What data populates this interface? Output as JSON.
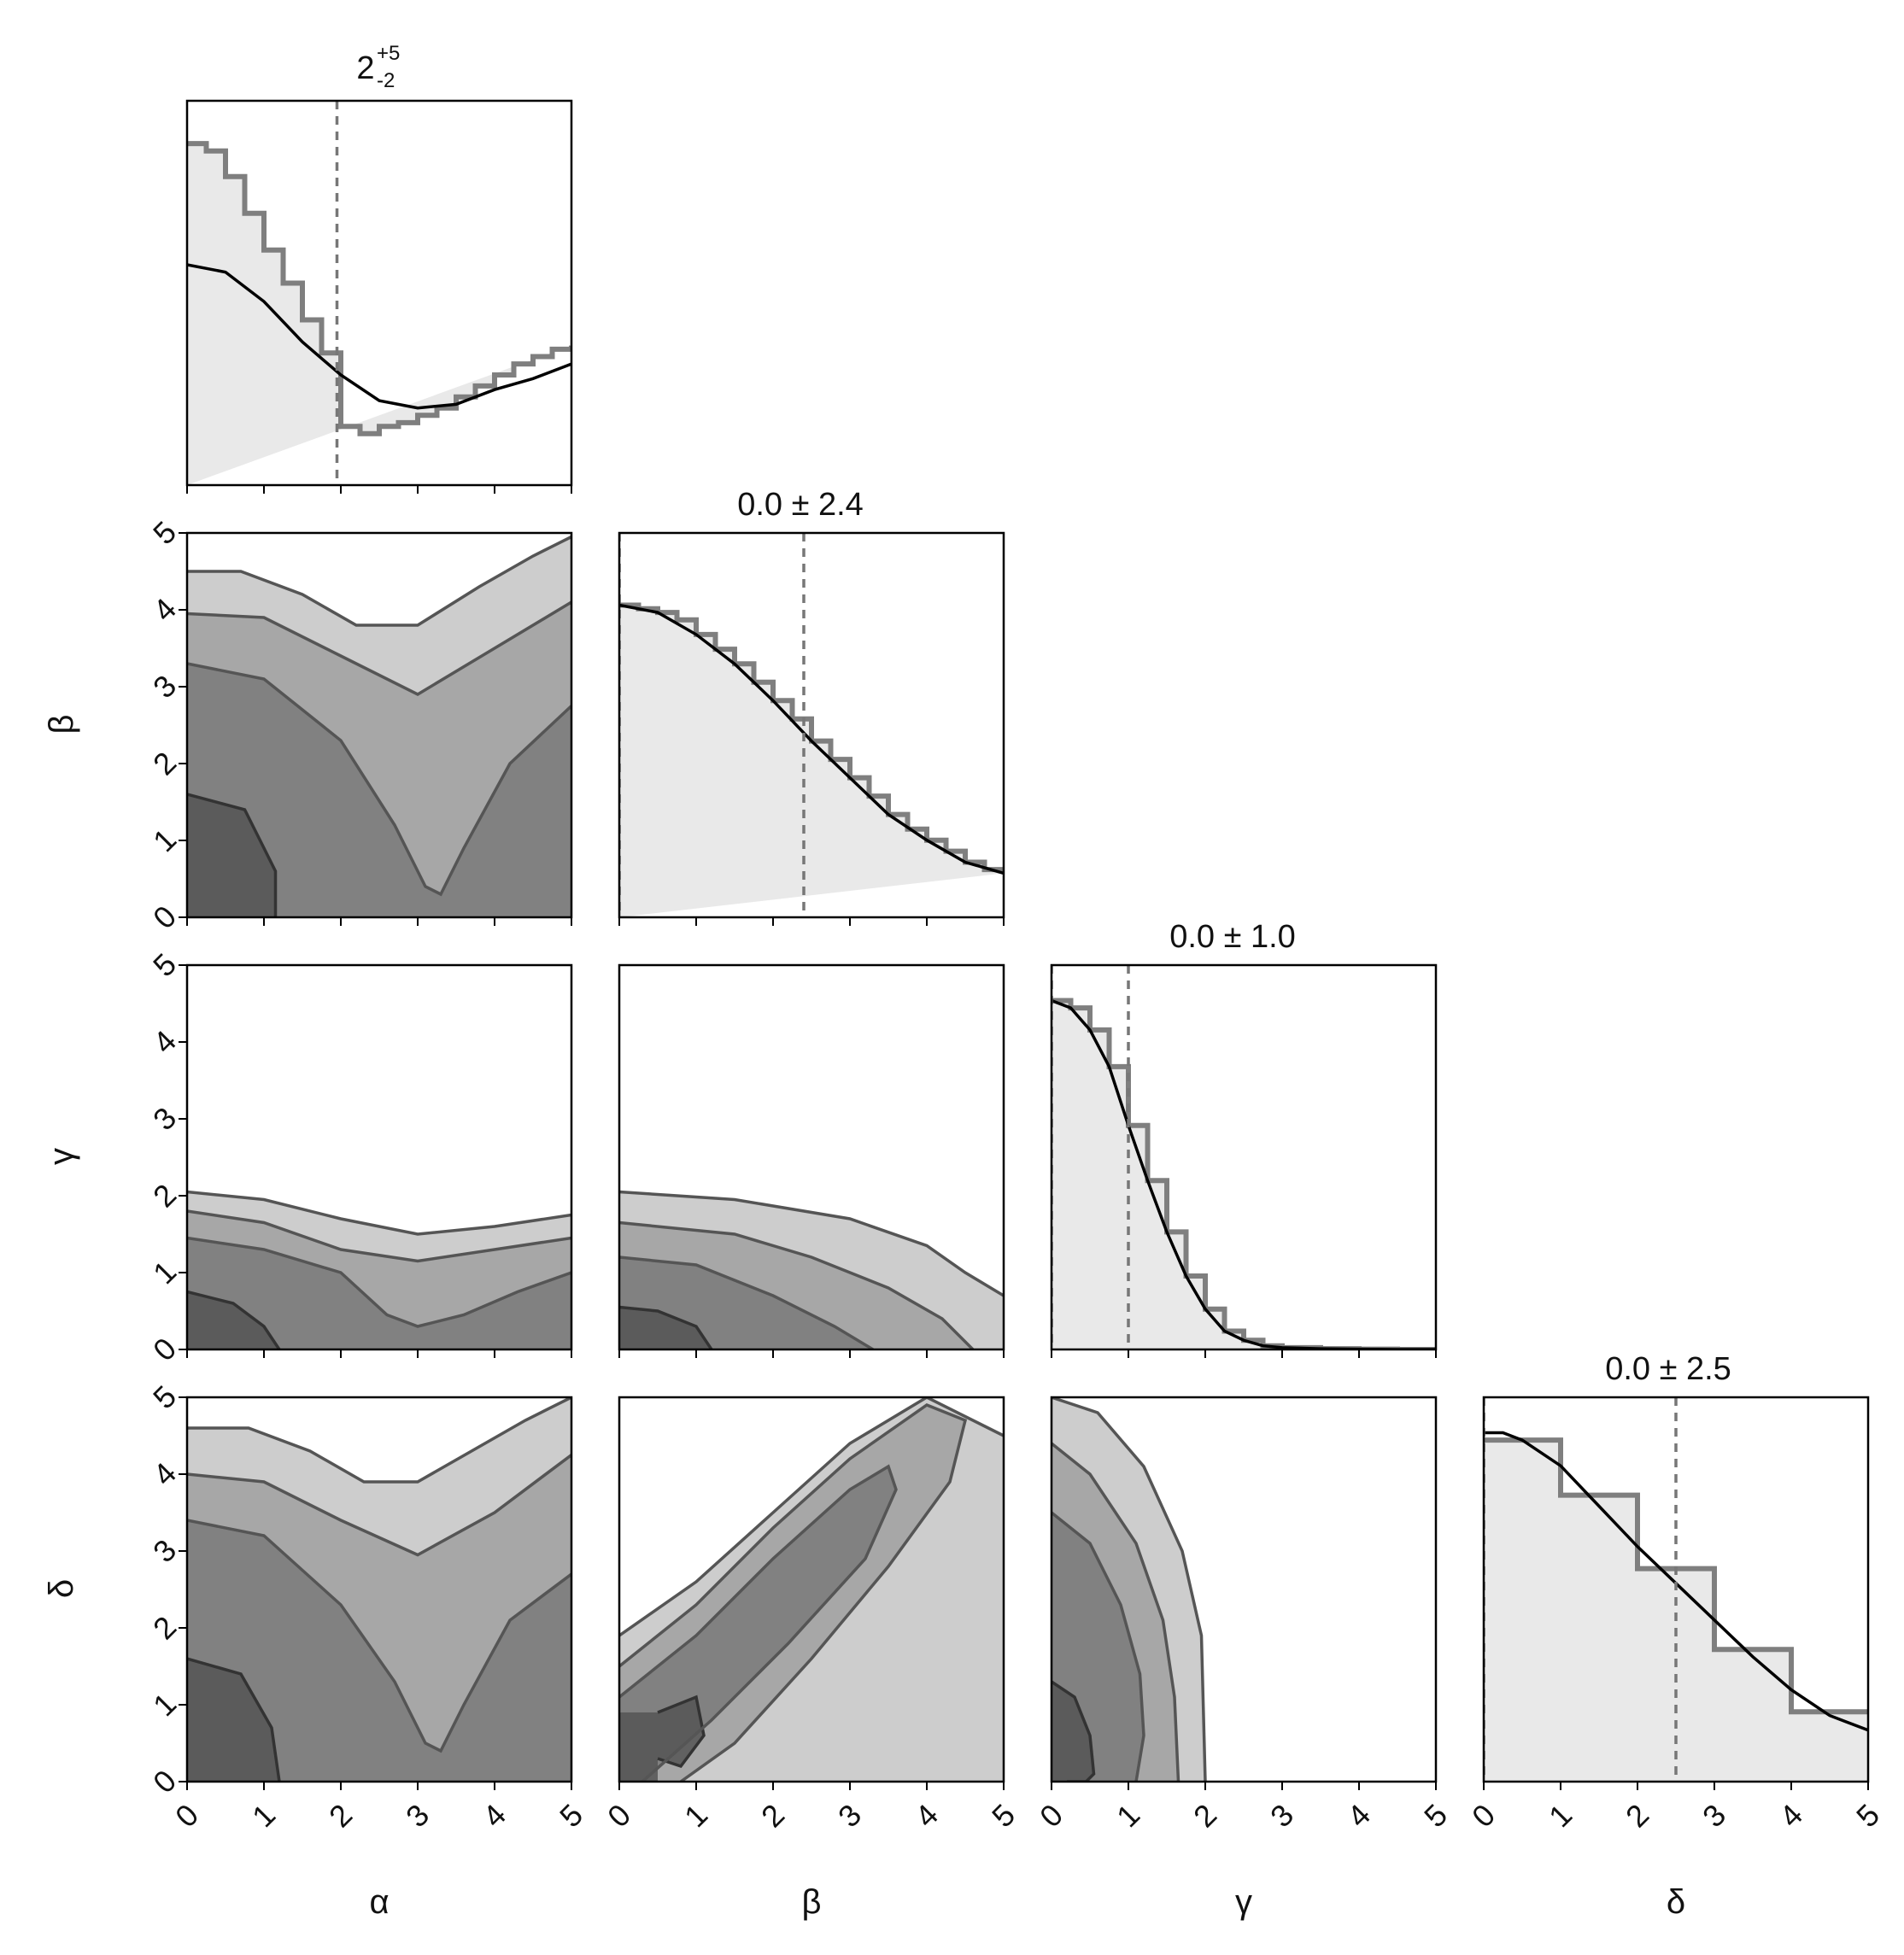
{
  "figure": {
    "type": "corner_plot",
    "parameters": [
      "α",
      "β",
      "γ",
      "δ"
    ],
    "axis_range": [
      0,
      5
    ],
    "ticks": [
      "0",
      "1",
      "2",
      "3",
      "4",
      "5"
    ],
    "colors": {
      "hist_step": "#7f7f7f",
      "fill": "#e9e9e9",
      "curve": "#000000",
      "contour": "#555555",
      "marker": "#777777"
    }
  },
  "chart_data": [
    {
      "type": "line",
      "panel": "α marginal",
      "title_main": "2",
      "title_sup": "+5",
      "title_sub": "-2",
      "marker_x": 1.95,
      "step_x": [
        0,
        0.25,
        0.5,
        0.75,
        1.0,
        1.25,
        1.5,
        1.75,
        2.0,
        2.25,
        2.5,
        2.75,
        3.0,
        3.25,
        3.5,
        3.75,
        4.0,
        4.25,
        4.5,
        4.75,
        5.0
      ],
      "step_y": [
        0.93,
        0.91,
        0.84,
        0.74,
        0.64,
        0.55,
        0.45,
        0.36,
        0.16,
        0.14,
        0.16,
        0.17,
        0.19,
        0.21,
        0.24,
        0.27,
        0.3,
        0.33,
        0.35,
        0.37,
        0.38
      ],
      "curve_x": [
        0,
        0.5,
        1.0,
        1.5,
        2.0,
        2.5,
        3.0,
        3.5,
        4.0,
        4.5,
        5.0
      ],
      "curve_y": [
        0.6,
        0.58,
        0.5,
        0.39,
        0.3,
        0.23,
        0.21,
        0.22,
        0.26,
        0.29,
        0.33
      ]
    },
    {
      "type": "line",
      "panel": "β marginal",
      "title": "0.0 ± 2.4",
      "marker_lines": [
        0,
        2.4
      ],
      "step_x": [
        0,
        0.25,
        0.5,
        0.75,
        1.0,
        1.25,
        1.5,
        1.75,
        2.0,
        2.25,
        2.5,
        2.75,
        3.0,
        3.25,
        3.5,
        3.75,
        4.0,
        4.25,
        4.5,
        4.75,
        5.0
      ],
      "step_y": [
        0.85,
        0.84,
        0.83,
        0.81,
        0.77,
        0.73,
        0.69,
        0.64,
        0.59,
        0.54,
        0.48,
        0.43,
        0.38,
        0.33,
        0.28,
        0.24,
        0.21,
        0.18,
        0.15,
        0.13,
        0.12
      ],
      "curve_x": [
        0,
        0.5,
        1.0,
        1.5,
        2.0,
        2.5,
        3.0,
        3.5,
        4.0,
        4.5,
        5.0
      ],
      "curve_y": [
        0.85,
        0.83,
        0.77,
        0.69,
        0.59,
        0.48,
        0.38,
        0.28,
        0.21,
        0.15,
        0.12
      ]
    },
    {
      "type": "line",
      "panel": "γ marginal",
      "title": "0.0 ± 1.0",
      "marker_lines": [
        0,
        1.0
      ],
      "step_x": [
        0,
        0.25,
        0.5,
        0.75,
        1.0,
        1.25,
        1.5,
        1.75,
        2.0,
        2.25,
        2.5,
        2.75,
        3.0,
        3.5,
        4.0,
        4.5,
        5.0
      ],
      "step_y": [
        0.95,
        0.93,
        0.87,
        0.77,
        0.61,
        0.46,
        0.32,
        0.2,
        0.11,
        0.05,
        0.025,
        0.01,
        0.005,
        0.002,
        0.001,
        0,
        0
      ],
      "curve_x": [
        0,
        0.25,
        0.5,
        0.75,
        1.0,
        1.25,
        1.5,
        1.75,
        2.0,
        2.25,
        2.5,
        2.75,
        3.0,
        3.5,
        4.0,
        4.5,
        5.0
      ],
      "curve_y": [
        0.95,
        0.93,
        0.87,
        0.77,
        0.61,
        0.46,
        0.32,
        0.2,
        0.11,
        0.05,
        0.025,
        0.01,
        0.005,
        0.002,
        0.001,
        0,
        0
      ]
    },
    {
      "type": "line",
      "panel": "δ marginal",
      "title": "0.0 ± 2.5",
      "marker_lines": [
        0,
        2.5
      ],
      "step_x": [
        0,
        1,
        2,
        3,
        4,
        5
      ],
      "step_y": [
        0.93,
        0.78,
        0.58,
        0.36,
        0.19
      ],
      "curve_x": [
        0,
        0.25,
        0.5,
        1.0,
        1.5,
        2.0,
        2.5,
        3.0,
        3.5,
        4.0,
        4.5,
        5.0
      ],
      "curve_y": [
        0.95,
        0.95,
        0.93,
        0.86,
        0.75,
        0.64,
        0.54,
        0.44,
        0.34,
        0.25,
        0.18,
        0.14
      ]
    },
    {
      "type": "heatmap",
      "panel": "β vs α",
      "contours": [
        {
          "x": [
            0,
            0.75,
            1.15,
            1.15
          ],
          "y": [
            1.6,
            1.4,
            0.6,
            0
          ]
        },
        {
          "x": [
            0,
            1.0,
            2.0,
            2.7,
            3.1,
            3.3,
            3.6,
            4.2,
            5.0
          ],
          "y": [
            3.3,
            3.1,
            2.3,
            1.2,
            0.4,
            0.3,
            0.9,
            2.0,
            2.75
          ]
        },
        {
          "x": [
            0,
            1.0,
            2.0,
            3.0,
            4.0,
            5.0
          ],
          "y": [
            3.95,
            3.9,
            3.4,
            2.9,
            3.5,
            4.1
          ]
        },
        {
          "x": [
            0,
            0.7,
            1.5,
            2.2,
            3.0,
            3.8,
            4.5,
            5.0
          ],
          "y": [
            4.5,
            4.5,
            4.2,
            3.8,
            3.8,
            4.3,
            4.7,
            4.95
          ]
        }
      ]
    },
    {
      "type": "heatmap",
      "panel": "γ vs α",
      "contours": [
        {
          "x": [
            0,
            0.6,
            1.0,
            1.2
          ],
          "y": [
            0.75,
            0.6,
            0.3,
            0
          ]
        },
        {
          "x": [
            0,
            1.0,
            2.0,
            2.6,
            3.0,
            3.6,
            4.3,
            5.0
          ],
          "y": [
            1.45,
            1.3,
            1.0,
            0.45,
            0.3,
            0.45,
            0.75,
            1.0
          ]
        },
        {
          "x": [
            0,
            1.0,
            2.0,
            3.0,
            4.0,
            5.0
          ],
          "y": [
            1.8,
            1.65,
            1.3,
            1.15,
            1.3,
            1.45
          ]
        },
        {
          "x": [
            0,
            1.0,
            2.0,
            3.0,
            4.0,
            5.0
          ],
          "y": [
            2.05,
            1.95,
            1.7,
            1.5,
            1.6,
            1.75
          ]
        }
      ]
    },
    {
      "type": "heatmap",
      "panel": "γ vs β",
      "contours": [
        {
          "x": [
            0,
            0.5,
            1.0,
            1.2
          ],
          "y": [
            0.55,
            0.5,
            0.3,
            0
          ]
        },
        {
          "x": [
            0,
            1.0,
            2.0,
            2.8,
            3.3
          ],
          "y": [
            1.2,
            1.1,
            0.7,
            0.3,
            0
          ]
        },
        {
          "x": [
            0,
            1.5,
            2.5,
            3.5,
            4.2,
            4.6
          ],
          "y": [
            1.65,
            1.5,
            1.2,
            0.8,
            0.4,
            0
          ]
        },
        {
          "x": [
            0,
            1.5,
            3.0,
            4.0,
            4.5,
            5.0
          ],
          "y": [
            2.05,
            1.95,
            1.7,
            1.35,
            1.0,
            0.7
          ]
        }
      ]
    },
    {
      "type": "heatmap",
      "panel": "δ vs α",
      "contours": [
        {
          "x": [
            0,
            0.7,
            1.1,
            1.2
          ],
          "y": [
            1.6,
            1.4,
            0.7,
            0
          ]
        },
        {
          "x": [
            0,
            1.0,
            2.0,
            2.7,
            3.1,
            3.3,
            3.6,
            4.2,
            5.0
          ],
          "y": [
            3.4,
            3.2,
            2.3,
            1.3,
            0.5,
            0.4,
            1.0,
            2.1,
            2.7
          ]
        },
        {
          "x": [
            0,
            1.0,
            2.0,
            3.0,
            4.0,
            5.0
          ],
          "y": [
            4.0,
            3.9,
            3.4,
            2.95,
            3.5,
            4.25
          ]
        },
        {
          "x": [
            0,
            0.8,
            1.6,
            2.3,
            3.0,
            3.7,
            4.4,
            5.0
          ],
          "y": [
            4.6,
            4.6,
            4.3,
            3.9,
            3.9,
            4.3,
            4.7,
            5.0
          ]
        }
      ]
    },
    {
      "type": "heatmap",
      "panel": "δ vs β",
      "contours": [
        {
          "x": [
            0.5,
            1.0,
            1.1,
            0.8,
            0.5
          ],
          "y": [
            0.9,
            1.1,
            0.6,
            0.2,
            0.3
          ]
        },
        {
          "x": [
            0,
            1.0,
            2.0,
            3.0,
            3.5,
            3.6,
            3.2,
            2.2,
            1.2,
            0.3
          ],
          "y": [
            1.1,
            1.9,
            2.9,
            3.8,
            4.1,
            3.8,
            2.9,
            1.8,
            0.8,
            0
          ]
        },
        {
          "x": [
            0,
            1.0,
            2.0,
            3.0,
            4.0,
            4.5,
            4.3,
            3.5,
            2.5,
            1.5,
            0.8
          ],
          "y": [
            1.5,
            2.3,
            3.3,
            4.2,
            4.9,
            4.7,
            3.9,
            2.8,
            1.6,
            0.5,
            0
          ]
        },
        {
          "x": [
            0,
            1.0,
            2.0,
            3.0,
            4.0,
            5.0
          ],
          "y": [
            1.9,
            2.6,
            3.5,
            4.4,
            5.0,
            4.5
          ]
        }
      ]
    },
    {
      "type": "heatmap",
      "panel": "δ vs γ",
      "contours": [
        {
          "x": [
            0,
            0.3,
            0.5,
            0.55,
            0.45,
            0.2
          ],
          "y": [
            1.3,
            1.1,
            0.6,
            0.1,
            0,
            0
          ]
        },
        {
          "x": [
            0,
            0.5,
            0.9,
            1.15,
            1.2,
            1.1
          ],
          "y": [
            3.5,
            3.1,
            2.3,
            1.4,
            0.6,
            0
          ]
        },
        {
          "x": [
            0,
            0.5,
            1.1,
            1.45,
            1.6,
            1.65
          ],
          "y": [
            4.4,
            4.0,
            3.1,
            2.1,
            1.1,
            0
          ]
        },
        {
          "x": [
            0,
            0.6,
            1.2,
            1.7,
            1.95,
            2.0
          ],
          "y": [
            5.0,
            4.8,
            4.1,
            3.0,
            1.9,
            0
          ]
        }
      ]
    }
  ]
}
